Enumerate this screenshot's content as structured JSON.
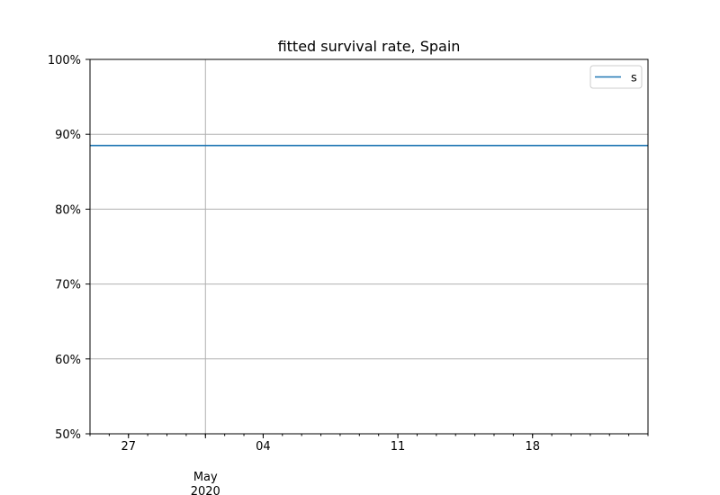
{
  "chart_data": {
    "type": "line",
    "title": "fitted survival rate, Spain",
    "xlabel": "",
    "ylabel": "",
    "x_range": [
      "2020-04-25",
      "2020-05-24"
    ],
    "ylim": [
      0.5,
      1.0
    ],
    "y_ticks": [
      {
        "value": 0.5,
        "label": "50%"
      },
      {
        "value": 0.6,
        "label": "60%"
      },
      {
        "value": 0.7,
        "label": "70%"
      },
      {
        "value": 0.8,
        "label": "80%"
      },
      {
        "value": 0.9,
        "label": "90%"
      },
      {
        "value": 1.0,
        "label": "100%"
      }
    ],
    "x_major_ticks": [
      {
        "date": "2020-04-27",
        "label": "27"
      },
      {
        "date": "2020-05-04",
        "label": "04"
      },
      {
        "date": "2020-05-11",
        "label": "11"
      },
      {
        "date": "2020-05-18",
        "label": "18"
      }
    ],
    "x_month_label": {
      "date": "2020-05-01",
      "month": "May",
      "year": "2020"
    },
    "grid": true,
    "legend_position": "top-right",
    "series": [
      {
        "name": "s",
        "color": "#1f77b4",
        "points": [
          {
            "x": "2020-04-25",
            "y": 0.885
          },
          {
            "x": "2020-05-24",
            "y": 0.885
          }
        ]
      }
    ]
  }
}
